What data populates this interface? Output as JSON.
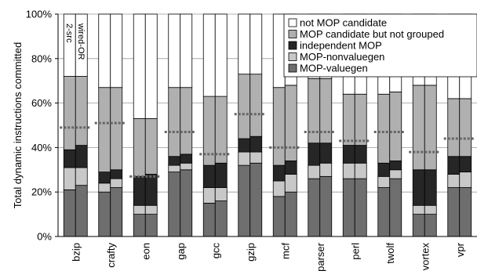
{
  "chart_data": {
    "type": "bar",
    "stacked": true,
    "ylabel": "Total dynamic instructions committed",
    "ylim": [
      0,
      100
    ],
    "yticks": [
      "0%",
      "20%",
      "40%",
      "60%",
      "80%",
      "100%"
    ],
    "categories": [
      "bzip",
      "crafty",
      "eon",
      "gap",
      "gcc",
      "gzip",
      "mcf",
      "parser",
      "perl",
      "twolf",
      "vortex",
      "vpr"
    ],
    "bar_labels": [
      "2-src",
      "wired-OR"
    ],
    "legend_position": "top-right",
    "legend": [
      {
        "name": "not MOP candidate",
        "color": "#ffffff"
      },
      {
        "name": "MOP candidate but not grouped",
        "color": "#b0b0b0"
      },
      {
        "name": "independent MOP",
        "color": "#262626"
      },
      {
        "name": "MOP-nonvaluegen",
        "color": "#c8c8c8"
      },
      {
        "name": "MOP-valuegen",
        "color": "#6e6e6e"
      }
    ],
    "bars": [
      [
        [
          21,
          10,
          8,
          33,
          28
        ],
        [
          23,
          8,
          10,
          31,
          28
        ]
      ],
      [
        [
          20,
          4,
          5,
          38,
          33
        ],
        [
          22,
          4,
          4,
          37,
          33
        ]
      ],
      [
        [
          10,
          4,
          13,
          26,
          47
        ],
        [
          10,
          4,
          14,
          25,
          47
        ]
      ],
      [
        [
          29,
          3,
          4,
          31,
          33
        ],
        [
          30,
          3,
          4,
          30,
          33
        ]
      ],
      [
        [
          15,
          7,
          10,
          31,
          37
        ],
        [
          16,
          6,
          11,
          30,
          37
        ]
      ],
      [
        [
          32,
          6,
          6,
          29,
          27
        ],
        [
          33,
          5,
          7,
          28,
          27
        ]
      ],
      [
        [
          18,
          7,
          7,
          35,
          33
        ],
        [
          20,
          8,
          6,
          34,
          32
        ]
      ],
      [
        [
          26,
          6,
          10,
          29,
          29
        ],
        [
          27,
          6,
          9,
          29,
          29
        ]
      ],
      [
        [
          26,
          7,
          8,
          23,
          36
        ],
        [
          26,
          7,
          8,
          23,
          36
        ]
      ],
      [
        [
          22,
          5,
          6,
          31,
          36
        ],
        [
          26,
          4,
          4,
          31,
          35
        ]
      ],
      [
        [
          10,
          4,
          16,
          38,
          32
        ],
        [
          10,
          4,
          16,
          38,
          32
        ]
      ],
      [
        [
          22,
          6,
          8,
          26,
          38
        ],
        [
          22,
          7,
          7,
          26,
          38
        ]
      ]
    ],
    "reference_lines": [
      49,
      51,
      27,
      47,
      37,
      55,
      40,
      47,
      43,
      47,
      38,
      44
    ]
  }
}
